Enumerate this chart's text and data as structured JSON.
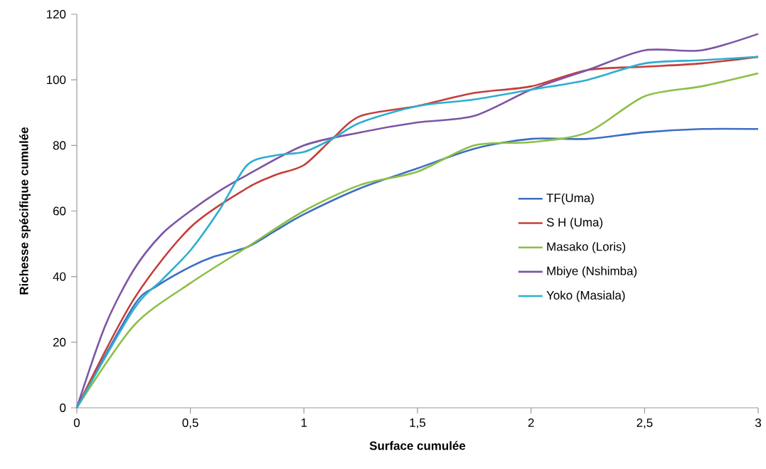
{
  "chart_data": {
    "type": "line",
    "xlabel": "Surface cumulée",
    "ylabel": "Richesse spécifique cumulée",
    "xlim": [
      0,
      3
    ],
    "ylim": [
      0,
      120
    ],
    "xticks": [
      0,
      {
        "value": 0.5,
        "label": "0,5"
      },
      1,
      {
        "value": 1.5,
        "label": "1,5"
      },
      2,
      {
        "value": 2.5,
        "label": "2,5"
      },
      3
    ],
    "yticks": [
      0,
      20,
      40,
      60,
      80,
      100,
      120
    ],
    "grid": false,
    "legend": "right",
    "marker": "none",
    "line_style": "solid",
    "series": [
      {
        "name": "TF(Uma)",
        "color": "#3d6fc2",
        "x": [
          0,
          0.25,
          0.35,
          0.5,
          0.6,
          0.75,
          0.875,
          1,
          1.25,
          1.5,
          1.75,
          2,
          2.25,
          2.5,
          2.75,
          3
        ],
        "values": [
          0,
          31,
          37,
          43,
          46,
          49,
          54,
          59,
          67,
          73,
          79,
          82,
          82,
          84,
          85,
          85
        ]
      },
      {
        "name": "S H (Uma)",
        "color": "#c43e3a",
        "x": [
          0,
          0.25,
          0.5,
          0.75,
          0.875,
          1,
          1.125,
          1.25,
          1.5,
          1.75,
          2,
          2.25,
          2.5,
          2.75,
          3
        ],
        "values": [
          0,
          33,
          55,
          67,
          71,
          74,
          82,
          89,
          92,
          96,
          98,
          103,
          104,
          105,
          107
        ]
      },
      {
        "name": "Masako (Loris)",
        "color": "#8dbf45",
        "x": [
          0,
          0.25,
          0.5,
          0.75,
          1,
          1.25,
          1.5,
          1.75,
          2,
          2.25,
          2.5,
          2.75,
          3
        ],
        "values": [
          0,
          25,
          38,
          49,
          60,
          68,
          72,
          80,
          81,
          84,
          95,
          98,
          102
        ]
      },
      {
        "name": "Mbiye (Nshimba)",
        "color": "#7d55a5",
        "x": [
          0,
          0.125,
          0.25,
          0.375,
          0.5,
          0.625,
          0.75,
          1,
          1.25,
          1.5,
          1.75,
          2,
          2.25,
          2.5,
          2.75,
          3
        ],
        "values": [
          0,
          25,
          42,
          53,
          60,
          66,
          71,
          80,
          84,
          87,
          89,
          97,
          103,
          109,
          109,
          114
        ]
      },
      {
        "name": "Yoko (Masiala)",
        "color": "#2eaed0",
        "x": [
          0,
          0.25,
          0.375,
          0.5,
          0.625,
          0.75,
          0.875,
          1,
          1.125,
          1.25,
          1.5,
          1.75,
          2,
          2.25,
          2.5,
          2.75,
          3
        ],
        "values": [
          0,
          30,
          39,
          48,
          60,
          74,
          77,
          78,
          82,
          87,
          92,
          94,
          97,
          100,
          105,
          106,
          107
        ]
      }
    ]
  }
}
